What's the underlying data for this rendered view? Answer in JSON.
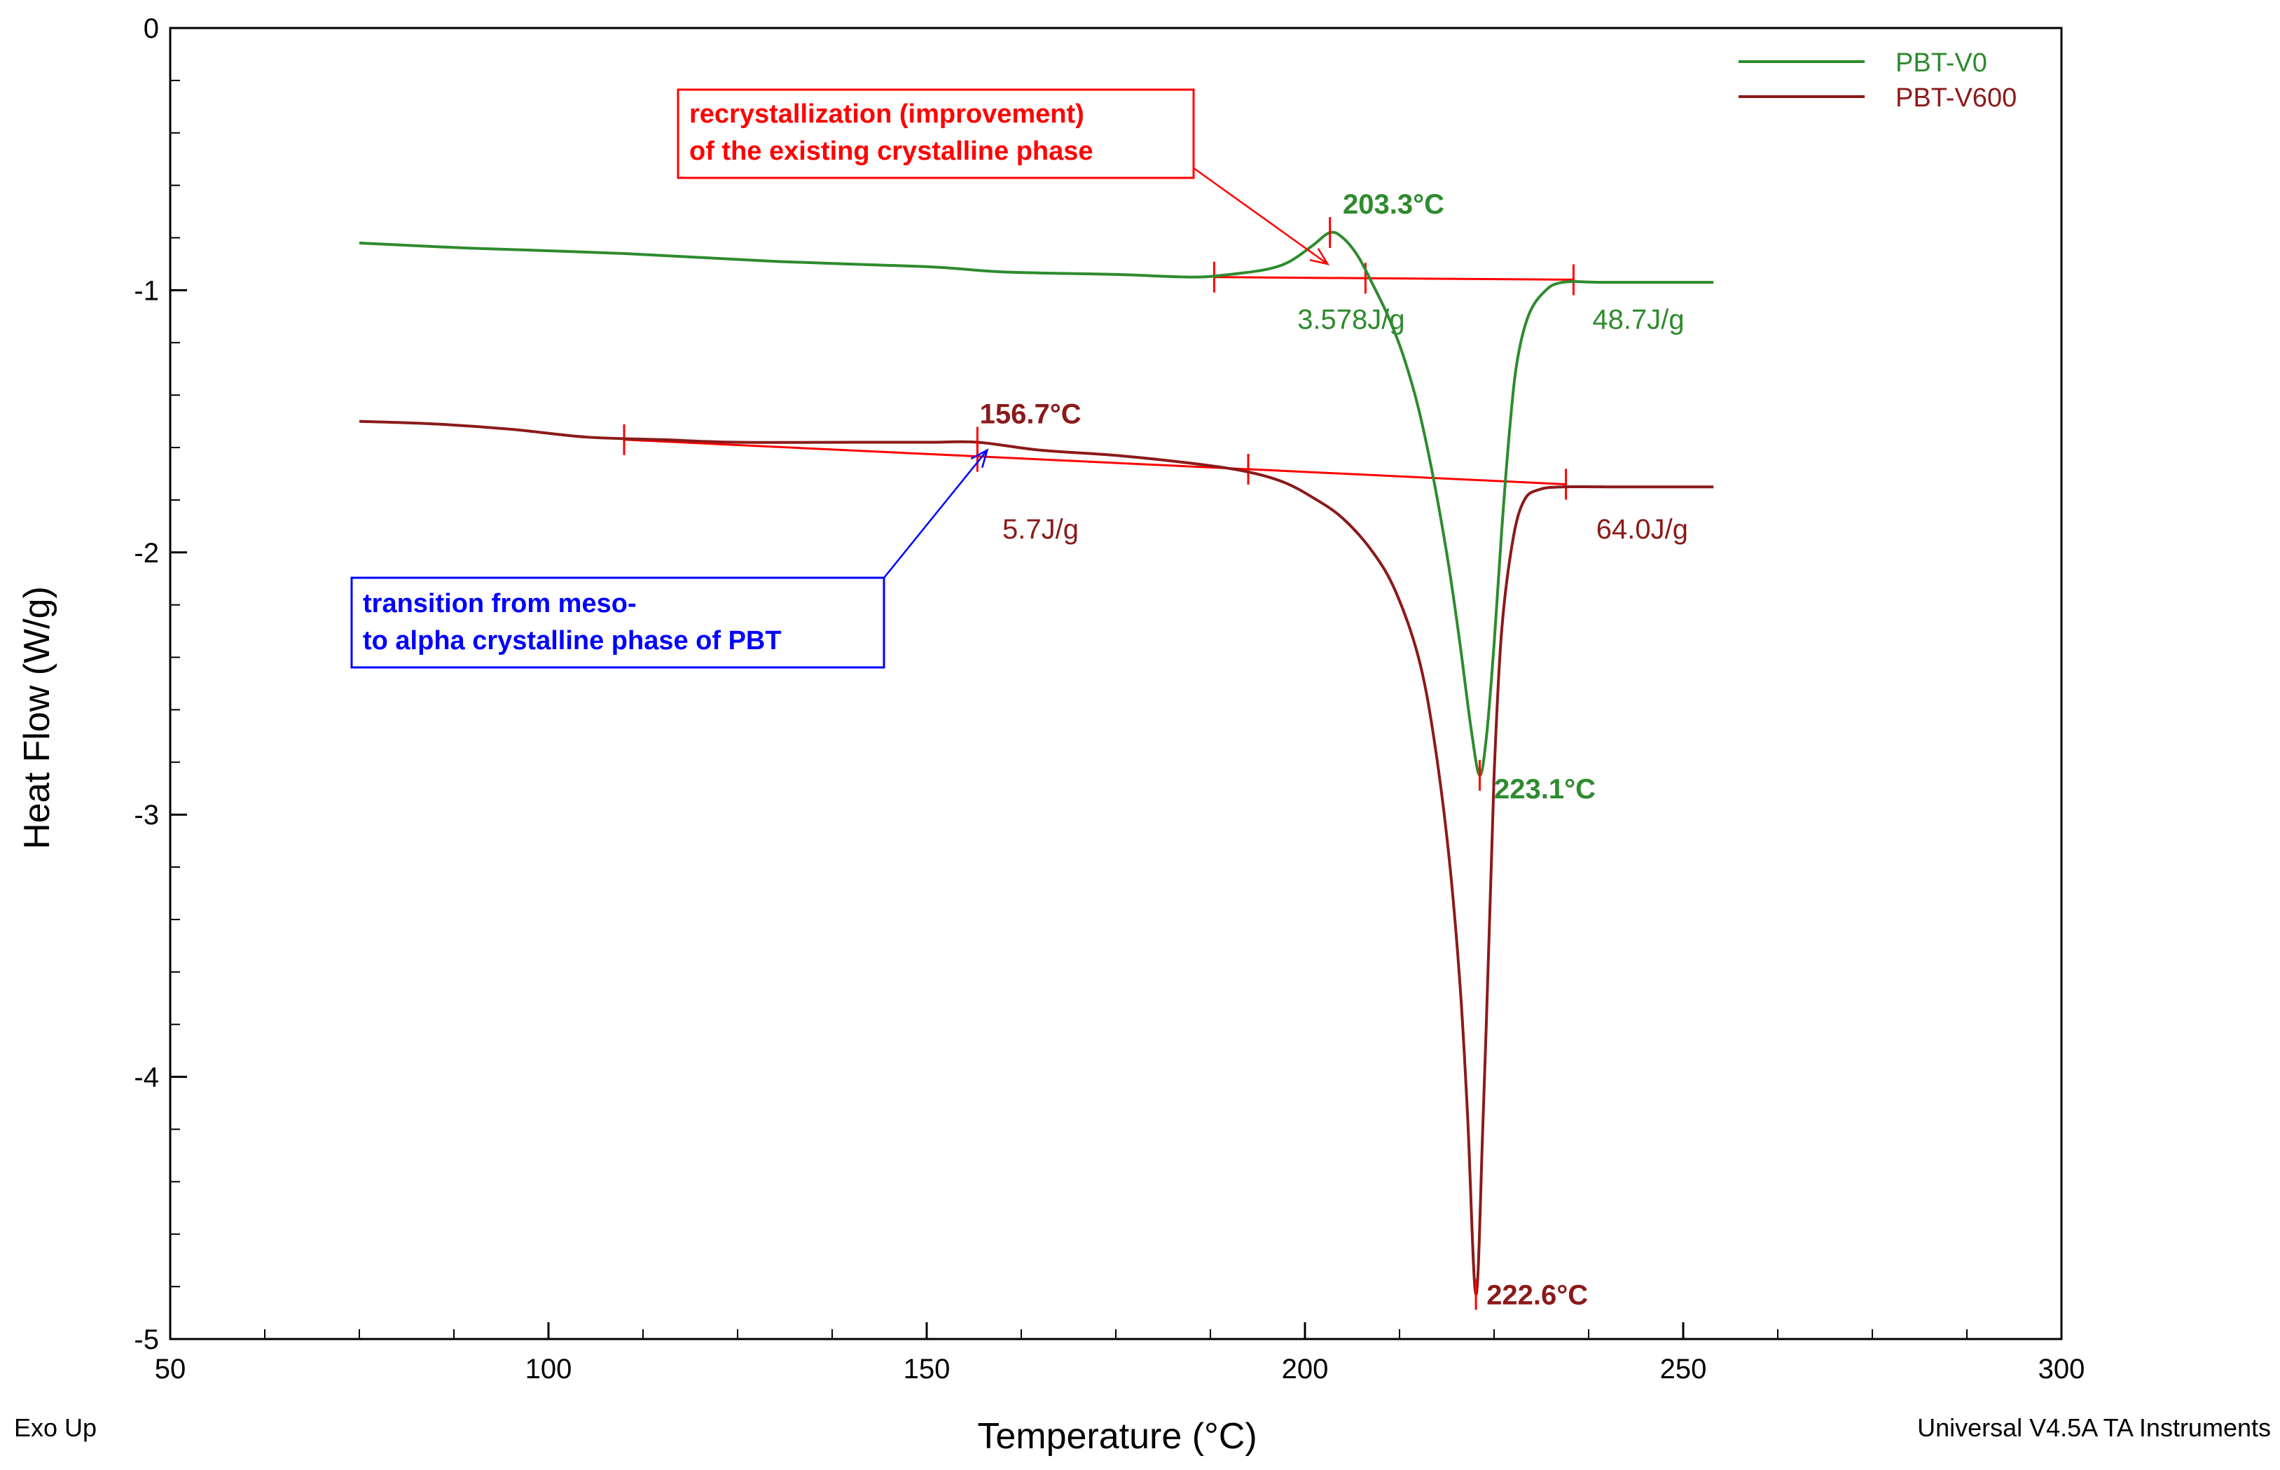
{
  "chart_data": {
    "type": "line",
    "title": "",
    "xlabel": "Temperature (°C)",
    "ylabel": "Heat Flow (W/g)",
    "xlim": [
      50,
      300
    ],
    "ylim": [
      -5,
      0
    ],
    "x_ticks": [
      50,
      100,
      150,
      200,
      250,
      300
    ],
    "y_ticks": [
      0,
      -1,
      -2,
      -3,
      -4,
      -5
    ],
    "x_tick_labels": [
      "50",
      "100",
      "150",
      "200",
      "250",
      "300"
    ],
    "y_tick_labels": [
      "0",
      "-1",
      "-2",
      "-3",
      "-4",
      "-5"
    ],
    "grid": false,
    "legend_position": "top-right",
    "series": [
      {
        "name": "PBT-V0",
        "color": "#2e8b2e",
        "points": [
          [
            75,
            -0.82
          ],
          [
            90,
            -0.84
          ],
          [
            110,
            -0.86
          ],
          [
            130,
            -0.89
          ],
          [
            150,
            -0.91
          ],
          [
            160,
            -0.93
          ],
          [
            175,
            -0.94
          ],
          [
            185,
            -0.95
          ],
          [
            190,
            -0.94
          ],
          [
            195,
            -0.92
          ],
          [
            198,
            -0.89
          ],
          [
            201,
            -0.83
          ],
          [
            203.3,
            -0.78
          ],
          [
            205,
            -0.8
          ],
          [
            207,
            -0.87
          ],
          [
            209,
            -0.98
          ],
          [
            211,
            -1.1
          ],
          [
            213,
            -1.25
          ],
          [
            215,
            -1.45
          ],
          [
            217,
            -1.72
          ],
          [
            219,
            -2.05
          ],
          [
            220.5,
            -2.35
          ],
          [
            222,
            -2.68
          ],
          [
            223.1,
            -2.85
          ],
          [
            224,
            -2.7
          ],
          [
            225,
            -2.35
          ],
          [
            226,
            -1.92
          ],
          [
            227,
            -1.55
          ],
          [
            228,
            -1.28
          ],
          [
            229.5,
            -1.1
          ],
          [
            231.5,
            -1.01
          ],
          [
            234,
            -0.97
          ],
          [
            240,
            -0.97
          ],
          [
            254,
            -0.97
          ]
        ]
      },
      {
        "name": "PBT-V600",
        "color": "#8b1a1a",
        "points": [
          [
            75,
            -1.5
          ],
          [
            85,
            -1.51
          ],
          [
            95,
            -1.53
          ],
          [
            105,
            -1.56
          ],
          [
            115,
            -1.57
          ],
          [
            125,
            -1.58
          ],
          [
            140,
            -1.58
          ],
          [
            150,
            -1.58
          ],
          [
            156.7,
            -1.58
          ],
          [
            165,
            -1.61
          ],
          [
            175,
            -1.63
          ],
          [
            185,
            -1.66
          ],
          [
            192,
            -1.69
          ],
          [
            197,
            -1.73
          ],
          [
            201,
            -1.79
          ],
          [
            205,
            -1.87
          ],
          [
            209,
            -2.0
          ],
          [
            212,
            -2.15
          ],
          [
            215,
            -2.4
          ],
          [
            217,
            -2.7
          ],
          [
            219,
            -3.15
          ],
          [
            220.5,
            -3.65
          ],
          [
            221.5,
            -4.15
          ],
          [
            222.6,
            -4.83
          ],
          [
            223.5,
            -4.2
          ],
          [
            224.3,
            -3.5
          ],
          [
            225,
            -2.85
          ],
          [
            226,
            -2.3
          ],
          [
            227.5,
            -1.95
          ],
          [
            229,
            -1.8
          ],
          [
            231,
            -1.76
          ],
          [
            234,
            -1.75
          ],
          [
            240,
            -1.75
          ],
          [
            254,
            -1.75
          ]
        ]
      }
    ],
    "baselines": [
      {
        "series": "PBT-V0",
        "color": "#ff0000",
        "from": [
          188,
          -0.95
        ],
        "to": [
          235.5,
          -0.96
        ],
        "ticks_x": [
          188,
          208,
          235.5
        ]
      },
      {
        "series": "PBT-V600",
        "color": "#ff0000",
        "from": [
          110,
          -1.57
        ],
        "to": [
          234.5,
          -1.74
        ],
        "ticks_x": [
          110,
          156.7,
          192.5,
          234.5
        ]
      }
    ],
    "peak_markers": [
      {
        "series": "PBT-V0",
        "x": 203.3,
        "y": -0.78
      },
      {
        "series": "PBT-V600",
        "x": 156.7,
        "y": -1.58
      },
      {
        "series": "PBT-V0",
        "x": 223.1,
        "y": -2.85
      },
      {
        "series": "PBT-V600",
        "x": 222.6,
        "y": -4.83
      }
    ],
    "annotations": [
      {
        "text": "203.3°C",
        "kind": "temperature",
        "color": "#2e8b2e",
        "x": 205,
        "y": -0.67
      },
      {
        "text": "3.578J/g",
        "kind": "enthalpy",
        "color": "#2e8b2e",
        "x": 199,
        "y": -1.11
      },
      {
        "text": "48.7J/g",
        "kind": "enthalpy",
        "color": "#2e8b2e",
        "x": 238,
        "y": -1.11
      },
      {
        "text": "223.1°C",
        "kind": "temperature",
        "color": "#2e8b2e",
        "x": 225,
        "y": -2.9
      },
      {
        "text": "156.7°C",
        "kind": "temperature",
        "color": "#8b1a1a",
        "x": 157,
        "y": -1.47
      },
      {
        "text": "5.7J/g",
        "kind": "enthalpy",
        "color": "#8b1a1a",
        "x": 160,
        "y": -1.91
      },
      {
        "text": "64.0J/g",
        "kind": "enthalpy",
        "color": "#8b1a1a",
        "x": 238.5,
        "y": -1.91
      },
      {
        "text": "222.6°C",
        "kind": "temperature",
        "color": "#8b1a1a",
        "x": 224,
        "y": -4.83
      }
    ],
    "callouts": [
      {
        "lines": [
          "recrystallization (improvement)",
          "of the existing crystalline phase"
        ],
        "color": "#ff0000",
        "arrow_to": [
          203,
          -0.9
        ]
      },
      {
        "lines": [
          "transition from meso-",
          "to alpha crystalline phase of PBT"
        ],
        "color": "#0000ff",
        "arrow_to": [
          158,
          -1.61
        ]
      }
    ]
  },
  "footer": {
    "left": "Exo Up",
    "right": "Universal V4.5A TA Instruments"
  }
}
